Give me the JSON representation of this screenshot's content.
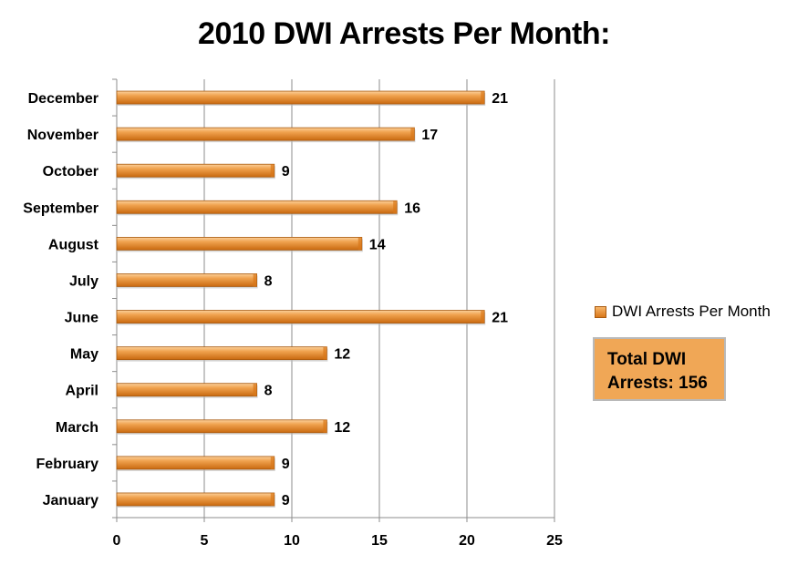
{
  "chart_data": {
    "type": "bar",
    "orientation": "horizontal",
    "title": "2010 DWI Arrests Per Month:",
    "categories": [
      "January",
      "February",
      "March",
      "April",
      "May",
      "June",
      "July",
      "August",
      "September",
      "October",
      "November",
      "December"
    ],
    "series": [
      {
        "name": "DWI Arrests Per Month",
        "values": [
          9,
          9,
          12,
          8,
          12,
          21,
          8,
          14,
          16,
          9,
          17,
          21
        ]
      }
    ],
    "xlim": [
      0,
      25
    ],
    "x_ticks": [
      "0",
      "5",
      "10",
      "15",
      "20",
      "25"
    ],
    "grid": "vertical major gridlines",
    "legend": "right",
    "bar_color": "#e58a2b"
  },
  "total_box": {
    "line1": "Total DWI",
    "line2": "Arrests: 156",
    "color": "#f0a756"
  }
}
